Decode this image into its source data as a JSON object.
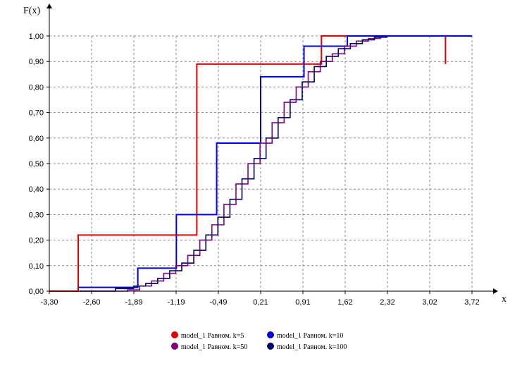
{
  "chart_data": {
    "type": "line",
    "title": "",
    "ylabel": "F(x)",
    "xlabel": "x",
    "xlim": [
      -3.3,
      3.72
    ],
    "ylim": [
      0,
      1
    ],
    "x_ticks": [
      "-3,30",
      "-2,60",
      "-1,89",
      "-1,19",
      "-0,49",
      "0,21",
      "0,91",
      "1,62",
      "2,32",
      "3,02",
      "3,72"
    ],
    "y_ticks": [
      "0,00",
      "0,10",
      "0,20",
      "0,30",
      "0,40",
      "0,50",
      "0,60",
      "0,70",
      "0,80",
      "0,90",
      "1,00"
    ],
    "grid": true,
    "legend_position": "bottom",
    "series": [
      {
        "name": "model_1 Равном. k=5",
        "color": "#e00000",
        "x": [
          -3.3,
          -2.82,
          -2.82,
          -0.85,
          -0.85,
          1.22,
          1.22,
          3.28,
          3.28
        ],
        "y": [
          0.0,
          0.0,
          0.22,
          0.22,
          0.89,
          0.89,
          1.0,
          1.0,
          0.89
        ]
      },
      {
        "name": "model_1 Равном. k=10",
        "color": "#0000e0",
        "x": [
          -2.82,
          -1.83,
          -1.83,
          -1.19,
          -1.19,
          -0.52,
          -0.52,
          0.21,
          0.21,
          0.93,
          0.93,
          1.65,
          1.65,
          2.46,
          2.46,
          3.72
        ],
        "y": [
          0.015,
          0.015,
          0.09,
          0.09,
          0.3,
          0.3,
          0.58,
          0.58,
          0.84,
          0.84,
          0.96,
          0.96,
          1.0,
          1.0,
          1.0,
          1.0
        ]
      },
      {
        "name": "model_1 Равном. k=50",
        "color": "#800080",
        "x": [
          -2.8,
          -2.0,
          -1.8,
          -1.6,
          -1.4,
          -1.2,
          -1.0,
          -0.8,
          -0.6,
          -0.4,
          -0.2,
          0.0,
          0.2,
          0.4,
          0.6,
          0.8,
          1.0,
          1.2,
          1.4,
          1.6,
          1.8,
          2.0,
          2.2
        ],
        "y": [
          0.0,
          0.005,
          0.02,
          0.04,
          0.07,
          0.1,
          0.14,
          0.2,
          0.26,
          0.34,
          0.42,
          0.5,
          0.58,
          0.66,
          0.74,
          0.8,
          0.86,
          0.9,
          0.93,
          0.96,
          0.98,
          0.99,
          1.0
        ]
      },
      {
        "name": "model_1 Равном. k=100",
        "color": "#000060",
        "x": [
          -2.8,
          -2.2,
          -1.9,
          -1.7,
          -1.5,
          -1.3,
          -1.1,
          -0.9,
          -0.7,
          -0.5,
          -0.3,
          -0.1,
          0.1,
          0.3,
          0.5,
          0.7,
          0.9,
          1.1,
          1.3,
          1.5,
          1.7,
          1.9,
          2.1,
          2.3
        ],
        "y": [
          0.0,
          0.01,
          0.02,
          0.03,
          0.05,
          0.08,
          0.11,
          0.16,
          0.22,
          0.29,
          0.36,
          0.44,
          0.52,
          0.6,
          0.68,
          0.75,
          0.82,
          0.88,
          0.92,
          0.95,
          0.97,
          0.985,
          0.995,
          1.0
        ]
      }
    ]
  }
}
